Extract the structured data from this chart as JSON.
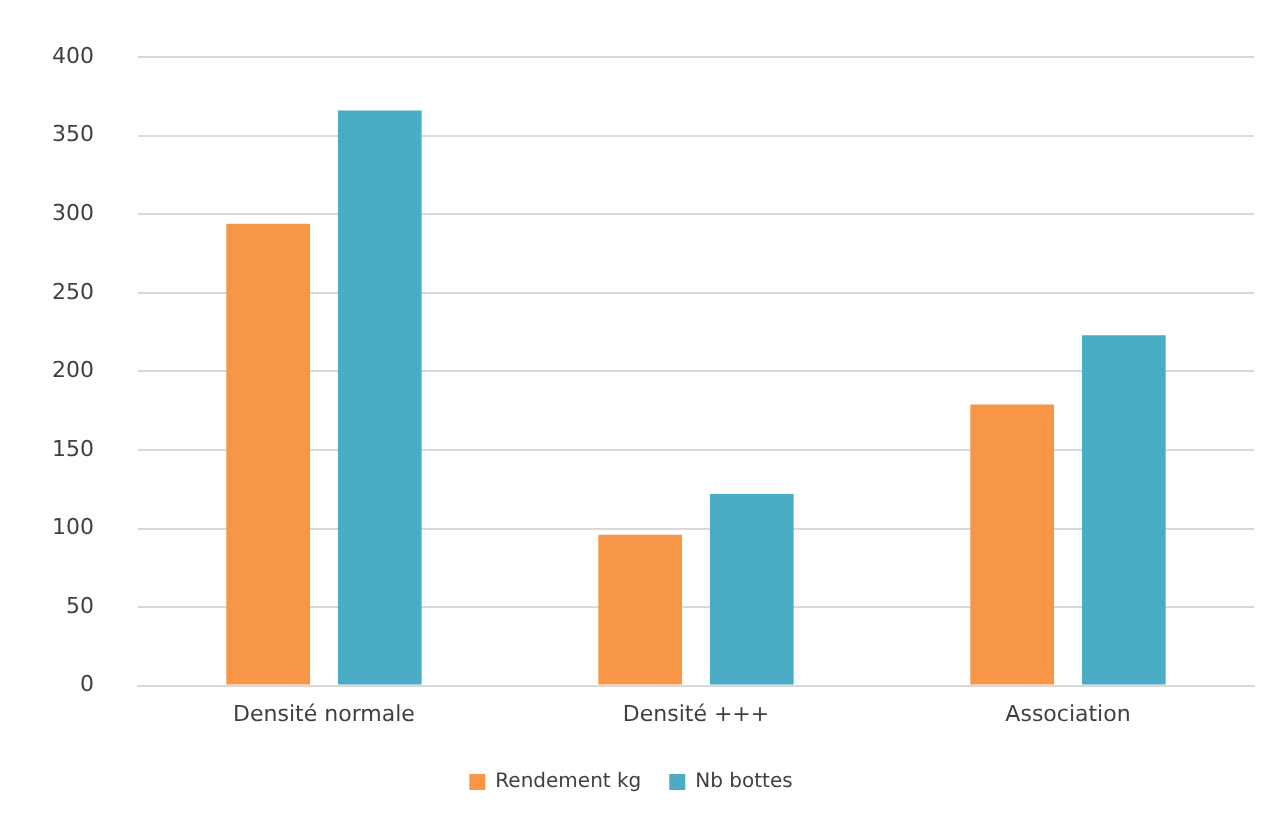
{
  "chart_data": {
    "type": "bar",
    "categories": [
      "Densité normale",
      "Densité +++",
      "Association"
    ],
    "series": [
      {
        "name": "Rendement kg",
        "color": "#f79646",
        "values": [
          294,
          96,
          179
        ]
      },
      {
        "name": "Nb bottes",
        "color": "#4bacc6",
        "values": [
          366,
          122,
          223
        ]
      }
    ],
    "ylim": [
      0,
      400
    ],
    "yticks": [
      0,
      50,
      100,
      150,
      200,
      250,
      300,
      350,
      400
    ],
    "grid": "y",
    "legend": "bottom"
  }
}
